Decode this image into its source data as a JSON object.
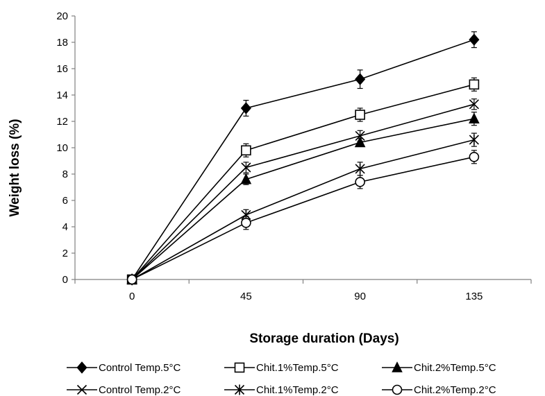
{
  "chart_data": {
    "type": "line",
    "x": [
      0,
      45,
      90,
      135
    ],
    "categories": [
      "0",
      "45",
      "90",
      "135"
    ],
    "xlabel": "Storage duration (Days)",
    "ylabel": "Weight loss (%)",
    "ylim": [
      0,
      20
    ],
    "yticks": [
      0,
      2,
      4,
      6,
      8,
      10,
      12,
      14,
      16,
      18,
      20
    ],
    "grid": false,
    "legend_position": "bottom",
    "series": [
      {
        "name": "Control Temp.5°C",
        "marker": "filled-diamond",
        "values": [
          0,
          13.0,
          15.2,
          18.2
        ],
        "errors": [
          0,
          0.6,
          0.7,
          0.6
        ]
      },
      {
        "name": "Chit.1%Temp.5°C",
        "marker": "open-square",
        "values": [
          0,
          9.8,
          12.5,
          14.8
        ],
        "errors": [
          0,
          0.5,
          0.5,
          0.5
        ]
      },
      {
        "name": "Chit.2%Temp.5°C",
        "marker": "filled-triangle",
        "values": [
          0,
          7.6,
          10.4,
          12.2
        ],
        "errors": [
          0,
          0.4,
          0.3,
          0.5
        ]
      },
      {
        "name": "Control Temp.2°C",
        "marker": "x",
        "values": [
          0,
          8.5,
          10.9,
          13.3
        ],
        "errors": [
          0,
          0.4,
          0.4,
          0.4
        ]
      },
      {
        "name": "Chit.1%Temp.2°C",
        "marker": "asterisk",
        "values": [
          0,
          4.9,
          8.4,
          10.6
        ],
        "errors": [
          0,
          0.4,
          0.5,
          0.5
        ]
      },
      {
        "name": "Chit.2%Temp.2°C",
        "marker": "open-circle",
        "values": [
          0,
          4.3,
          7.4,
          9.3
        ],
        "errors": [
          0,
          0.5,
          0.5,
          0.5
        ]
      }
    ],
    "colors": {
      "line": "#000000",
      "axis": "#808080",
      "text": "#000000"
    }
  }
}
